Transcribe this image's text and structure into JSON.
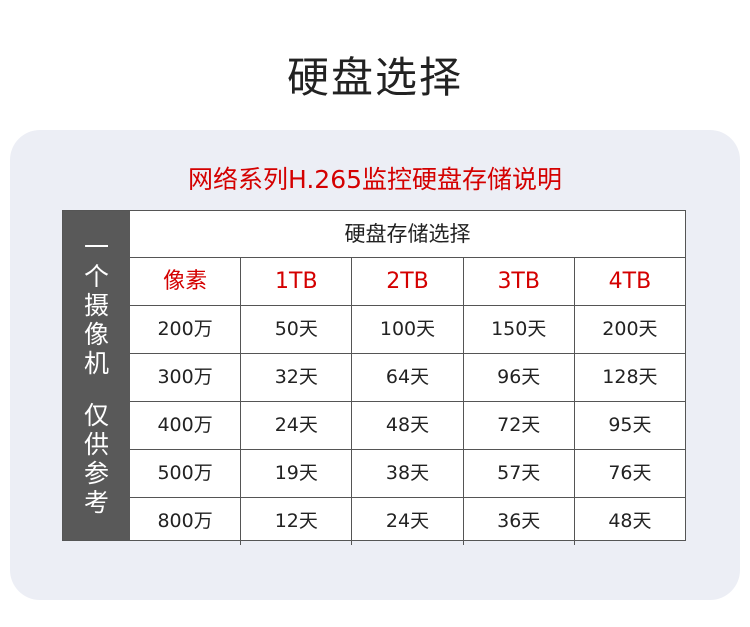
{
  "title": "硬盘选择",
  "subtitle": "网络系列H.265监控硬盘存储说明",
  "side_label_top": [
    "一",
    "个",
    "摄",
    "像",
    "机"
  ],
  "side_label_bottom": [
    "仅",
    "供",
    "参",
    "考"
  ],
  "table": {
    "header": "硬盘存储选择",
    "columns": [
      "像素",
      "1TB",
      "2TB",
      "3TB",
      "4TB"
    ],
    "rows": [
      [
        "200万",
        "50天",
        "100天",
        "150天",
        "200天"
      ],
      [
        "300万",
        "32天",
        "64天",
        "96天",
        "128天"
      ],
      [
        "400万",
        "24天",
        "48天",
        "72天",
        "95天"
      ],
      [
        "500万",
        "19天",
        "38天",
        "57天",
        "76天"
      ],
      [
        "800万",
        "12天",
        "24天",
        "36天",
        "48天"
      ]
    ]
  },
  "colors": {
    "accent": "#d40000",
    "side": "#595959",
    "card": "#eceef5"
  }
}
